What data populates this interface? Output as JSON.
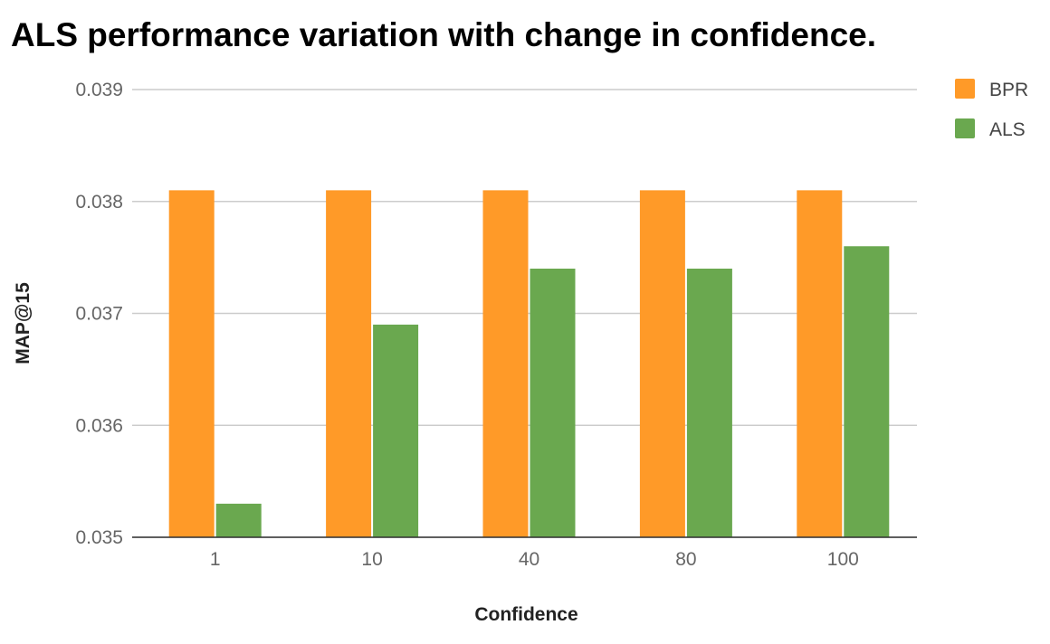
{
  "chart_data": {
    "type": "bar",
    "title": "ALS performance variation with change in confidence.",
    "xlabel": "Confidence",
    "ylabel": "MAP@15",
    "categories": [
      "1",
      "10",
      "40",
      "80",
      "100"
    ],
    "series": [
      {
        "name": "BPR",
        "color": "#ff9a28",
        "values": [
          0.0381,
          0.0381,
          0.0381,
          0.0381,
          0.0381
        ]
      },
      {
        "name": "ALS",
        "color": "#6aa84f",
        "values": [
          0.0353,
          0.0369,
          0.0374,
          0.0374,
          0.0376
        ]
      }
    ],
    "ylim": [
      0.035,
      0.039
    ],
    "yticks": [
      "0.035",
      "0.036",
      "0.037",
      "0.038",
      "0.039"
    ],
    "grid": true,
    "legend": "top-right"
  }
}
